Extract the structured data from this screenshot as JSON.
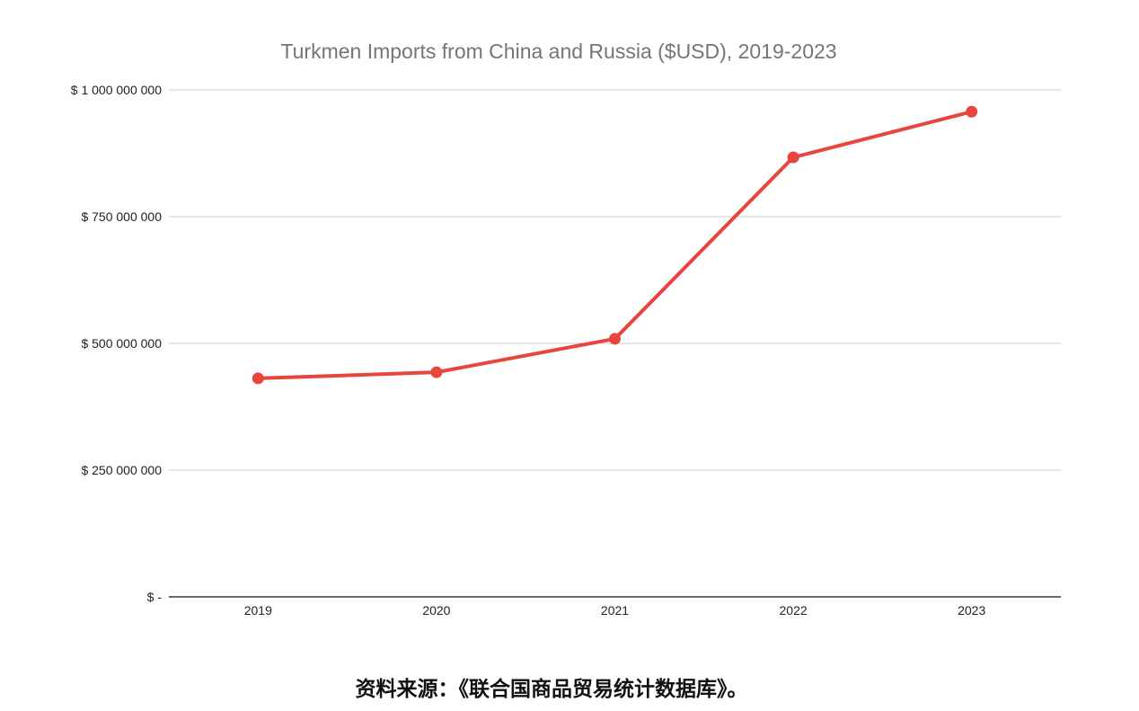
{
  "chart_data": {
    "type": "line",
    "title": "Turkmen Imports from China and Russia ($USD), 2019-2023",
    "categories": [
      "2019",
      "2020",
      "2021",
      "2022",
      "2023"
    ],
    "series": [
      {
        "values": [
          431000000,
          443000000,
          509000000,
          867000000,
          957000000
        ],
        "color": "#e8453c"
      }
    ],
    "ylim": [
      0,
      1000000000
    ],
    "yticks": [
      0,
      250000000,
      500000000,
      750000000,
      1000000000
    ],
    "ytick_labels": [
      "$ -",
      "$ 250 000 000",
      "$ 500 000 000",
      "$ 750 000 000",
      "$ 1 000 000 000"
    ],
    "grid": true,
    "legend": "none"
  },
  "colors": {
    "title": "#757575",
    "tick_label": "#222222",
    "gridline": "#cccccc",
    "axis": "#333333"
  },
  "source_note": "资料来源：《联合国商品贸易统计数据库》。"
}
